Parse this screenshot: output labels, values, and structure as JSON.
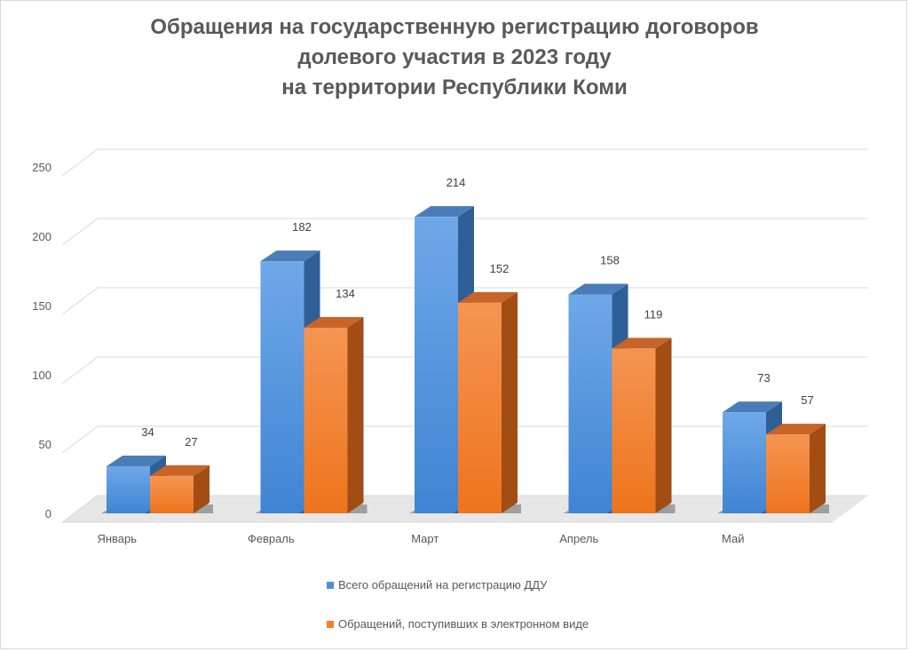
{
  "chart_data": {
    "type": "bar",
    "title_lines": [
      "Обращения на государственную регистрацию договоров",
      "долевого участия в 2023 году",
      "на территории Республики Коми"
    ],
    "categories": [
      "Январь",
      "Февраль",
      "Март",
      "Апрель",
      "Май"
    ],
    "series": [
      {
        "name": "Всего обращений на регистрацию ДДУ",
        "values": [
          34,
          182,
          214,
          158,
          73
        ],
        "color": "#4F8FD6"
      },
      {
        "name": "Обращений, поступивших в электронном виде",
        "values": [
          27,
          134,
          152,
          119,
          57
        ],
        "color": "#F27F29"
      }
    ],
    "y_ticks": [
      "0",
      "50",
      "100",
      "150",
      "200",
      "250"
    ],
    "ylim": [
      0,
      250
    ],
    "style": "3d-clustered-column",
    "grid": true,
    "legend_position": "bottom"
  }
}
